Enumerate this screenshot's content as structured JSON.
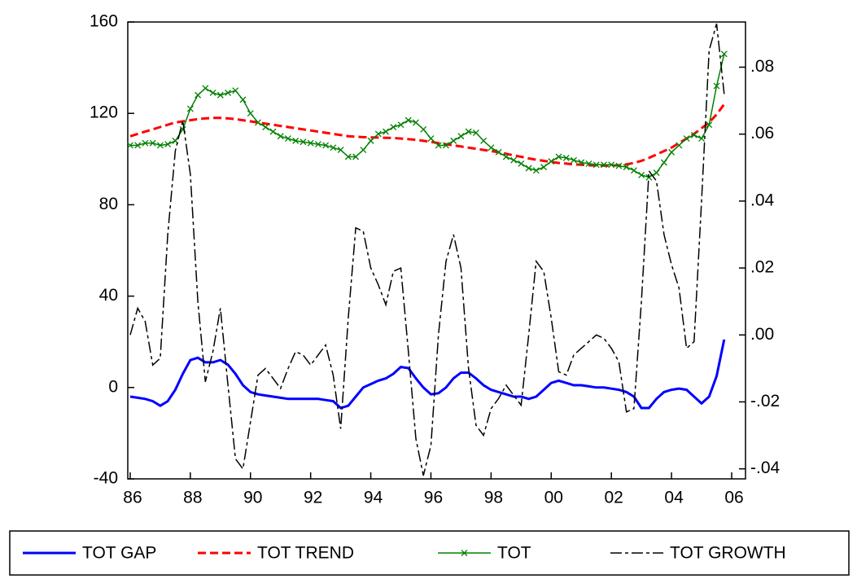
{
  "chart_data": {
    "type": "line",
    "x": [
      1986,
      1986.25,
      1986.5,
      1986.75,
      1987,
      1987.25,
      1987.5,
      1987.75,
      1988,
      1988.25,
      1988.5,
      1988.75,
      1989,
      1989.25,
      1989.5,
      1989.75,
      1990,
      1990.25,
      1990.5,
      1990.75,
      1991,
      1991.25,
      1991.5,
      1991.75,
      1992,
      1992.25,
      1992.5,
      1992.75,
      1993,
      1993.25,
      1993.5,
      1993.75,
      1994,
      1994.25,
      1994.5,
      1994.75,
      1995,
      1995.25,
      1995.5,
      1995.75,
      1996,
      1996.25,
      1996.5,
      1996.75,
      1997,
      1997.25,
      1997.5,
      1997.75,
      1998,
      1998.25,
      1998.5,
      1998.75,
      1999,
      1999.25,
      1999.5,
      1999.75,
      2000,
      2000.25,
      2000.5,
      2000.75,
      2001,
      2001.25,
      2001.5,
      2001.75,
      2002,
      2002.25,
      2002.5,
      2002.75,
      2003,
      2003.25,
      2003.5,
      2003.75,
      2004,
      2004.25,
      2004.5,
      2004.75,
      2005,
      2005.25,
      2005.5,
      2005.75
    ],
    "xlim": [
      1985.92,
      2006.46
    ],
    "xticks": [
      {
        "value": 1986,
        "label": "86"
      },
      {
        "value": 1988,
        "label": "88"
      },
      {
        "value": 1990,
        "label": "90"
      },
      {
        "value": 1992,
        "label": "92"
      },
      {
        "value": 1994,
        "label": "94"
      },
      {
        "value": 1996,
        "label": "96"
      },
      {
        "value": 1998,
        "label": "98"
      },
      {
        "value": 2000,
        "label": "00"
      },
      {
        "value": 2002,
        "label": "02"
      },
      {
        "value": 2004,
        "label": "04"
      },
      {
        "value": 2006,
        "label": "06"
      }
    ],
    "ylim": [
      -40,
      160
    ],
    "yticks": [
      -40,
      0,
      40,
      80,
      120,
      160
    ],
    "y2lim": [
      -0.043,
      0.0935
    ],
    "y2ticks": [
      {
        "value": -0.04,
        "label": "-.04"
      },
      {
        "value": -0.02,
        "label": "-.02"
      },
      {
        "value": 0,
        "label": ".00"
      },
      {
        "value": 0.02,
        "label": ".02"
      },
      {
        "value": 0.04,
        "label": ".04"
      },
      {
        "value": 0.06,
        "label": ".06"
      },
      {
        "value": 0.08,
        "label": ".08"
      }
    ],
    "series": [
      {
        "name": "TOT GAP",
        "color": "#0000ff",
        "dash": "solid",
        "width": 3,
        "values": [
          -4,
          -4.5,
          -5,
          -6,
          -8,
          -6,
          -1,
          6,
          12,
          13,
          11,
          11,
          12,
          10,
          6,
          1,
          -2,
          -3,
          -3.5,
          -4,
          -4.5,
          -5,
          -5,
          -5,
          -5,
          -5,
          -5.5,
          -6,
          -9,
          -8,
          -4,
          0,
          1.5,
          3,
          4,
          6,
          9,
          8.5,
          4,
          0,
          -3,
          -2.5,
          0,
          4,
          6.5,
          6.5,
          4,
          1,
          -1,
          -2,
          -3,
          -4,
          -4,
          -5,
          -4,
          -1,
          2,
          3,
          2,
          1,
          1,
          0.5,
          0,
          0,
          -0.5,
          -1,
          -2,
          -4,
          -9,
          -9,
          -5,
          -2,
          -1,
          -0.5,
          -1,
          -4,
          -7,
          -4,
          5,
          21
        ]
      },
      {
        "name": "TOT TREND",
        "color": "#ff0000",
        "dash": "dashed",
        "width": 3,
        "values": [
          110,
          111,
          112,
          113,
          114,
          115,
          116,
          116.5,
          117,
          117.5,
          117.8,
          118,
          118,
          117.8,
          117.5,
          117,
          116.5,
          116,
          115.5,
          115,
          114.5,
          114,
          113.5,
          113,
          112.5,
          112,
          111.5,
          111,
          110.5,
          110,
          109.8,
          109.6,
          109.5,
          109.4,
          109.3,
          109.2,
          109,
          108.7,
          108.4,
          108,
          107.5,
          107,
          106.5,
          106,
          105.5,
          105,
          104.5,
          104,
          103.5,
          103,
          102.3,
          101.6,
          101,
          100.3,
          99.7,
          99.2,
          98.7,
          98.3,
          98,
          97.7,
          97.5,
          97.3,
          97.2,
          97.1,
          97.1,
          97.3,
          97.7,
          98.3,
          99.2,
          100.5,
          102,
          103.5,
          105,
          107,
          109,
          111,
          113.5,
          116,
          119.5,
          124
        ]
      },
      {
        "name": "TOT",
        "color": "#008000",
        "dash": "solid",
        "width": 1.5,
        "marker": "x",
        "values": [
          106,
          106,
          107,
          107,
          106,
          106.5,
          108,
          113,
          122,
          128,
          131,
          129,
          128,
          129,
          130,
          126,
          120,
          116,
          114,
          112,
          110,
          109,
          108,
          107.5,
          107,
          106.5,
          106,
          105,
          104,
          101,
          101,
          104,
          108,
          111,
          112,
          114,
          115,
          117,
          116,
          113,
          109,
          106,
          106,
          108,
          110,
          112,
          111.5,
          108,
          105,
          103,
          101,
          99.5,
          98,
          96,
          95,
          96.5,
          99,
          101,
          100.5,
          99.5,
          98.5,
          98,
          97.5,
          97.5,
          97.5,
          97,
          96.5,
          95,
          93,
          92,
          94,
          98.5,
          103,
          106,
          109,
          110.5,
          109,
          115,
          132,
          146
        ]
      },
      {
        "name": "TOT GROWTH",
        "color": "#000000",
        "dash": "dashdot",
        "width": 1.5,
        "axis": "y2",
        "values": [
          0,
          0.008,
          0.004,
          -0.009,
          -0.007,
          0.03,
          0.055,
          0.064,
          0.048,
          0.01,
          -0.014,
          -0.005,
          0.008,
          -0.015,
          -0.037,
          -0.04,
          -0.026,
          -0.012,
          -0.01,
          -0.013,
          -0.016,
          -0.01,
          -0.005,
          -0.006,
          -0.009,
          -0.006,
          -0.003,
          -0.012,
          -0.028,
          0.005,
          0.032,
          0.031,
          0.02,
          0.015,
          0.009,
          0.019,
          0.02,
          -0.005,
          -0.031,
          -0.042,
          -0.033,
          0,
          0.022,
          0.03,
          0.02,
          -0.01,
          -0.027,
          -0.03,
          -0.022,
          -0.019,
          -0.015,
          -0.018,
          -0.021,
          0,
          0.022,
          0.019,
          0.005,
          -0.011,
          -0.012,
          -0.006,
          -0.004,
          -0.002,
          0,
          -0.001,
          -0.004,
          -0.008,
          -0.023,
          -0.022,
          0.01,
          0.049,
          0.046,
          0.03,
          0.021,
          0.014,
          -0.004,
          -0.002,
          0.04,
          0.085,
          0.093,
          0.072
        ]
      }
    ]
  }
}
